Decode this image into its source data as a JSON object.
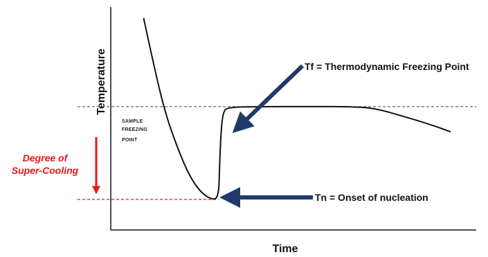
{
  "chart_data": {
    "type": "line",
    "title": "",
    "xlabel": "Time",
    "ylabel": "Temperature",
    "grid": false,
    "legend": "none",
    "xlim": [
      0,
      100
    ],
    "ylim": [
      0,
      100
    ],
    "series": [
      {
        "values_xy": [
          [
            9,
            95
          ],
          [
            12,
            72
          ],
          [
            15,
            52
          ],
          [
            18,
            38
          ],
          [
            21,
            26
          ],
          [
            24,
            18
          ],
          [
            27,
            14
          ],
          [
            29.5,
            13.7
          ],
          [
            29.8,
            30
          ],
          [
            30.2,
            45
          ],
          [
            30.8,
            53
          ],
          [
            32,
            55
          ],
          [
            40,
            55.3
          ],
          [
            55,
            55.3
          ],
          [
            65,
            55.3
          ],
          [
            72,
            54.7
          ],
          [
            80,
            51
          ],
          [
            88,
            47
          ],
          [
            93,
            44
          ]
        ]
      }
    ],
    "reference_lines": {
      "freezing_point_y": 55.3,
      "nucleation_y": 13.7
    },
    "annotations": {
      "sample_freezing_point": [
        "SAMPLE",
        "FREEZING",
        "POINT"
      ],
      "tf": "Tf = Thermodynamic Freezing Point",
      "tn": "Tn = Onset of nucleation",
      "degree_line1": "Degree of",
      "degree_line2": "Super-Cooling"
    },
    "colors": {
      "curve": "#111111",
      "arrow": "#1f3a68",
      "supercool": "#e8141a",
      "dashed": "#555555"
    }
  }
}
